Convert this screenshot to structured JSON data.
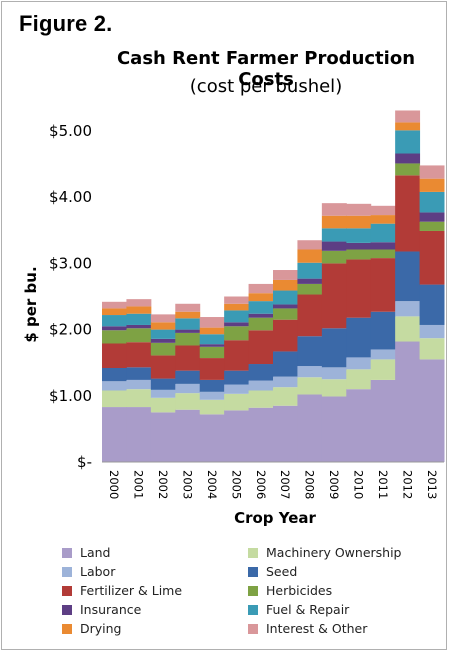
{
  "figure_label": "Figure 2.",
  "chart_data": {
    "type": "bar",
    "stacked": true,
    "title": "Cash Rent Farmer Production Costs",
    "subtitle": "(cost per bushel)",
    "xlabel": "Crop Year",
    "ylabel": "$ per bu.",
    "ylim": [
      0,
      5.5
    ],
    "yticks": [
      0,
      1,
      2,
      3,
      4,
      5
    ],
    "ytick_labels": [
      "$-",
      "$1.00",
      "$2.00",
      "$3.00",
      "$4.00",
      "$5.00"
    ],
    "grid": false,
    "legend_position": "bottom",
    "categories": [
      "2000",
      "2001",
      "2002",
      "2003",
      "2004",
      "2005",
      "2006",
      "2007",
      "2008",
      "2009",
      "2010",
      "2011",
      "2012",
      "2013"
    ],
    "series": [
      {
        "name": "Land",
        "color": "#a99cc9",
        "values": [
          0.83,
          0.83,
          0.75,
          0.79,
          0.72,
          0.78,
          0.82,
          0.85,
          1.02,
          0.99,
          1.1,
          1.24,
          1.82,
          1.55
        ]
      },
      {
        "name": "Machinery Ownership",
        "color": "#c5dba1",
        "values": [
          0.25,
          0.27,
          0.22,
          0.25,
          0.22,
          0.25,
          0.26,
          0.28,
          0.26,
          0.26,
          0.3,
          0.31,
          0.38,
          0.32
        ]
      },
      {
        "name": "Labor",
        "color": "#9db3d9",
        "values": [
          0.14,
          0.14,
          0.12,
          0.14,
          0.12,
          0.14,
          0.15,
          0.16,
          0.17,
          0.18,
          0.18,
          0.15,
          0.23,
          0.2
        ]
      },
      {
        "name": "Seed",
        "color": "#3b69a8",
        "values": [
          0.2,
          0.19,
          0.17,
          0.2,
          0.18,
          0.21,
          0.25,
          0.38,
          0.45,
          0.59,
          0.6,
          0.57,
          0.75,
          0.61
        ]
      },
      {
        "name": "Fertilizer & Lime",
        "color": "#b23b37",
        "values": [
          0.37,
          0.38,
          0.35,
          0.38,
          0.33,
          0.46,
          0.51,
          0.48,
          0.63,
          0.98,
          0.88,
          0.81,
          1.15,
          0.81
        ]
      },
      {
        "name": "Herbicides",
        "color": "#7ea244",
        "values": [
          0.2,
          0.21,
          0.19,
          0.19,
          0.17,
          0.21,
          0.19,
          0.17,
          0.16,
          0.19,
          0.15,
          0.13,
          0.18,
          0.14
        ]
      },
      {
        "name": "Insurance",
        "color": "#5d3e84",
        "values": [
          0.06,
          0.05,
          0.06,
          0.05,
          0.04,
          0.06,
          0.06,
          0.06,
          0.08,
          0.14,
          0.1,
          0.11,
          0.15,
          0.14
        ]
      },
      {
        "name": "Fuel & Repair",
        "color": "#3a9bb5",
        "values": [
          0.17,
          0.17,
          0.14,
          0.17,
          0.15,
          0.18,
          0.19,
          0.21,
          0.24,
          0.2,
          0.22,
          0.28,
          0.35,
          0.31
        ]
      },
      {
        "name": "Drying",
        "color": "#ea8a32",
        "values": [
          0.1,
          0.11,
          0.11,
          0.1,
          0.1,
          0.1,
          0.12,
          0.16,
          0.2,
          0.19,
          0.19,
          0.13,
          0.12,
          0.2
        ]
      },
      {
        "name": "Interest & Other",
        "color": "#d9979a",
        "values": [
          0.1,
          0.11,
          0.12,
          0.12,
          0.16,
          0.11,
          0.14,
          0.15,
          0.14,
          0.19,
          0.18,
          0.14,
          0.18,
          0.2
        ]
      }
    ]
  }
}
